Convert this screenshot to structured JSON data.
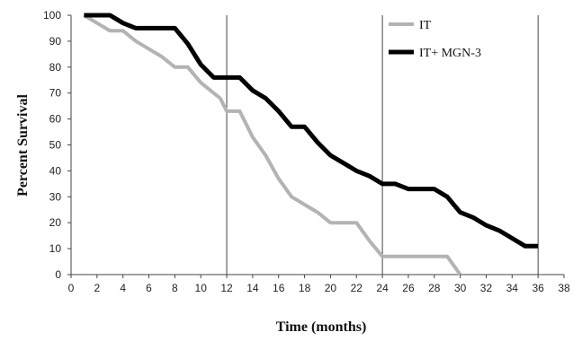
{
  "chart_data": {
    "type": "line",
    "xlabel": "Time (months)",
    "ylabel": "Percent Survival",
    "xlim": [
      0,
      38
    ],
    "ylim": [
      0,
      100
    ],
    "x_ticks": [
      0,
      2,
      4,
      6,
      8,
      10,
      12,
      14,
      16,
      18,
      20,
      22,
      24,
      26,
      28,
      30,
      32,
      34,
      36,
      38
    ],
    "y_ticks": [
      0,
      10,
      20,
      30,
      40,
      50,
      60,
      70,
      80,
      90,
      100
    ],
    "reference_lines_x": [
      12,
      24,
      36
    ],
    "legend_position": "top-right",
    "series": [
      {
        "name": "IT",
        "color": "#b3b3b3",
        "points": [
          [
            1,
            100
          ],
          [
            2,
            97
          ],
          [
            3,
            94
          ],
          [
            4,
            94
          ],
          [
            5,
            90
          ],
          [
            6,
            87
          ],
          [
            7,
            84
          ],
          [
            8,
            80
          ],
          [
            9,
            80
          ],
          [
            10,
            74
          ],
          [
            11,
            70
          ],
          [
            11.5,
            68
          ],
          [
            12,
            63
          ],
          [
            13,
            63
          ],
          [
            14,
            53
          ],
          [
            15,
            46
          ],
          [
            16,
            37
          ],
          [
            17,
            30
          ],
          [
            18,
            27
          ],
          [
            19,
            24
          ],
          [
            20,
            20
          ],
          [
            21,
            20
          ],
          [
            22,
            20
          ],
          [
            23,
            13
          ],
          [
            24,
            7
          ],
          [
            25,
            7
          ],
          [
            26,
            7
          ],
          [
            27,
            7
          ],
          [
            28,
            7
          ],
          [
            29,
            7
          ],
          [
            30,
            0
          ]
        ]
      },
      {
        "name": "IT+ MGN-3",
        "color": "#000000",
        "points": [
          [
            1,
            100
          ],
          [
            2,
            100
          ],
          [
            3,
            100
          ],
          [
            4,
            97
          ],
          [
            5,
            95
          ],
          [
            6,
            95
          ],
          [
            7,
            95
          ],
          [
            8,
            95
          ],
          [
            9,
            89
          ],
          [
            10,
            81
          ],
          [
            11,
            76
          ],
          [
            12,
            76
          ],
          [
            13,
            76
          ],
          [
            14,
            71
          ],
          [
            15,
            68
          ],
          [
            16,
            63
          ],
          [
            17,
            57
          ],
          [
            18,
            57
          ],
          [
            19,
            51
          ],
          [
            20,
            46
          ],
          [
            21,
            43
          ],
          [
            22,
            40
          ],
          [
            23,
            38
          ],
          [
            24,
            35
          ],
          [
            25,
            35
          ],
          [
            26,
            33
          ],
          [
            27,
            33
          ],
          [
            28,
            33
          ],
          [
            29,
            30
          ],
          [
            30,
            24
          ],
          [
            31,
            22
          ],
          [
            32,
            19
          ],
          [
            33,
            17
          ],
          [
            34,
            14
          ],
          [
            35,
            11
          ],
          [
            36,
            11
          ]
        ]
      }
    ]
  }
}
